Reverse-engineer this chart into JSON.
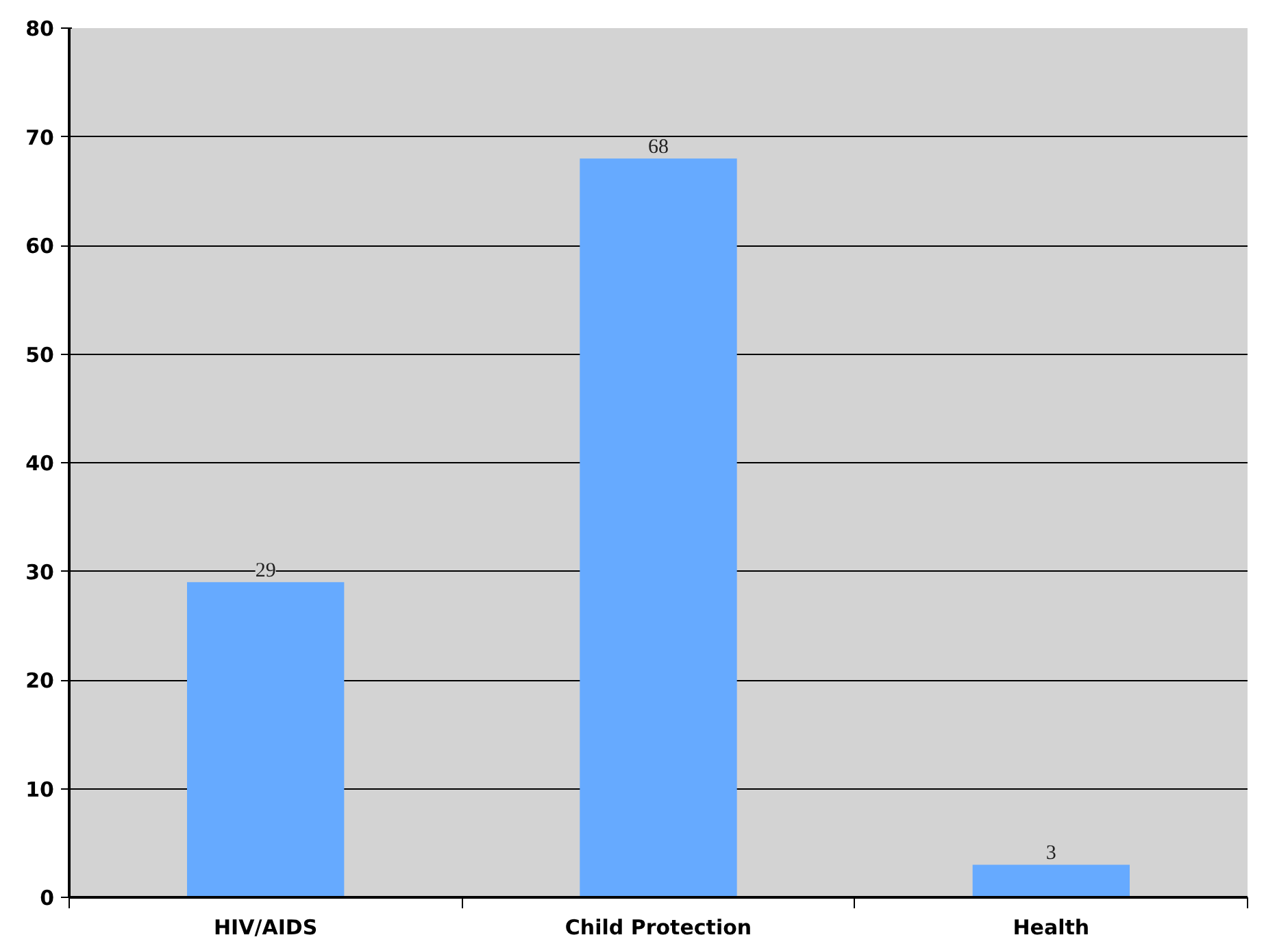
{
  "chart_data": {
    "type": "bar",
    "categories": [
      "HIV/AIDS",
      "Child Protection",
      "Health"
    ],
    "values": [
      29,
      68,
      3
    ],
    "color": "#66aaff",
    "ylim": [
      0,
      80
    ],
    "yticks": [
      0,
      10,
      20,
      30,
      40,
      50,
      60,
      70,
      80
    ],
    "grid": "y",
    "data_labels": true
  }
}
